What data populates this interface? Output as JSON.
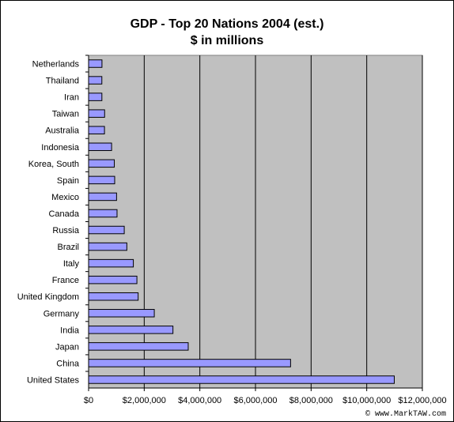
{
  "chart_data": {
    "type": "bar",
    "orientation": "horizontal",
    "title": "GDP - Top 20 Nations 2004 (est.)",
    "subtitle": "$ in millions",
    "categories": [
      "Netherlands",
      "Thailand",
      "Iran",
      "Taiwan",
      "Australia",
      "Indonesia",
      "Korea, South",
      "Spain",
      "Mexico",
      "Canada",
      "Russia",
      "Brazil",
      "Italy",
      "France",
      "United Kingdom",
      "Germany",
      "India",
      "Japan",
      "China",
      "United States"
    ],
    "values": [
      481000,
      477000,
      478000,
      576000,
      571000,
      827000,
      925000,
      938000,
      1006000,
      1023000,
      1282000,
      1375000,
      1609000,
      1737000,
      1782000,
      2362000,
      3033000,
      3582000,
      7262000,
      10990000
    ],
    "xlim": [
      0,
      12000000
    ],
    "x_ticks": [
      0,
      2000000,
      4000000,
      6000000,
      8000000,
      10000000,
      12000000
    ],
    "x_tick_labels": [
      "$0",
      "$2,000,000",
      "$4,000,000",
      "$6,000,000",
      "$8,000,000",
      "$10,000,000",
      "$12,000,000"
    ],
    "grid": "vertical major gridlines",
    "legend": "none",
    "colors": {
      "bar_fill": "#9999ff",
      "bar_stroke": "#000000",
      "plot_background": "#c0c0c0",
      "gridline": "#000000"
    }
  },
  "footer": {
    "copyright": "© www.MarkTAW.com"
  }
}
